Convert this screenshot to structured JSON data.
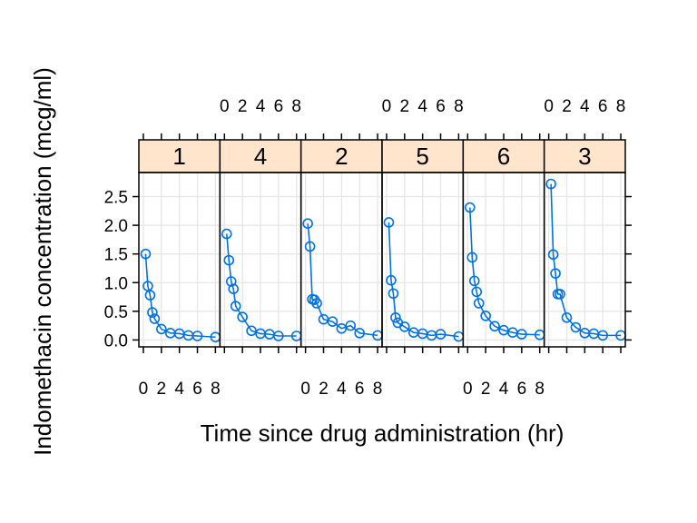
{
  "chart_data": {
    "type": "line",
    "title": "",
    "xlabel": "Time since drug administration (hr)",
    "ylabel": "Indomethacin concentration (mcg/ml)",
    "xlim": [
      -0.5,
      8.5
    ],
    "ylim": [
      -0.12,
      2.92
    ],
    "x_ticks": [
      0,
      2,
      4,
      6,
      8
    ],
    "y_ticks": [
      0.0,
      0.5,
      1.0,
      1.5,
      2.0,
      2.5
    ],
    "y_tick_labels": [
      "0.0",
      "0.5",
      "1.0",
      "1.5",
      "2.0",
      "2.5"
    ],
    "x_tick_labels": [
      "0",
      "2",
      "4",
      "6",
      "8"
    ],
    "grid": true,
    "colors": {
      "series": "#0072E0",
      "strip": "#FFE5CC",
      "grid": "#E6E6E6"
    },
    "time": [
      0.25,
      0.5,
      0.75,
      1,
      1.25,
      2,
      3,
      4,
      5,
      6,
      8
    ],
    "panels": [
      {
        "label": "1",
        "values": [
          1.5,
          0.94,
          0.78,
          0.48,
          0.37,
          0.19,
          0.12,
          0.11,
          0.08,
          0.07,
          0.05
        ]
      },
      {
        "label": "4",
        "values": [
          1.85,
          1.39,
          1.02,
          0.89,
          0.59,
          0.4,
          0.16,
          0.11,
          0.1,
          0.07,
          0.07
        ]
      },
      {
        "label": "2",
        "values": [
          2.03,
          1.63,
          0.71,
          0.7,
          0.64,
          0.36,
          0.32,
          0.2,
          0.25,
          0.12,
          0.08
        ]
      },
      {
        "label": "5",
        "values": [
          2.05,
          1.04,
          0.81,
          0.39,
          0.3,
          0.23,
          0.13,
          0.11,
          0.08,
          0.1,
          0.06
        ]
      },
      {
        "label": "6",
        "values": [
          2.31,
          1.44,
          1.03,
          0.84,
          0.64,
          0.42,
          0.24,
          0.17,
          0.13,
          0.1,
          0.09
        ]
      },
      {
        "label": "3",
        "values": [
          2.72,
          1.49,
          1.16,
          0.8,
          0.8,
          0.39,
          0.22,
          0.12,
          0.11,
          0.08,
          0.08
        ]
      }
    ]
  }
}
